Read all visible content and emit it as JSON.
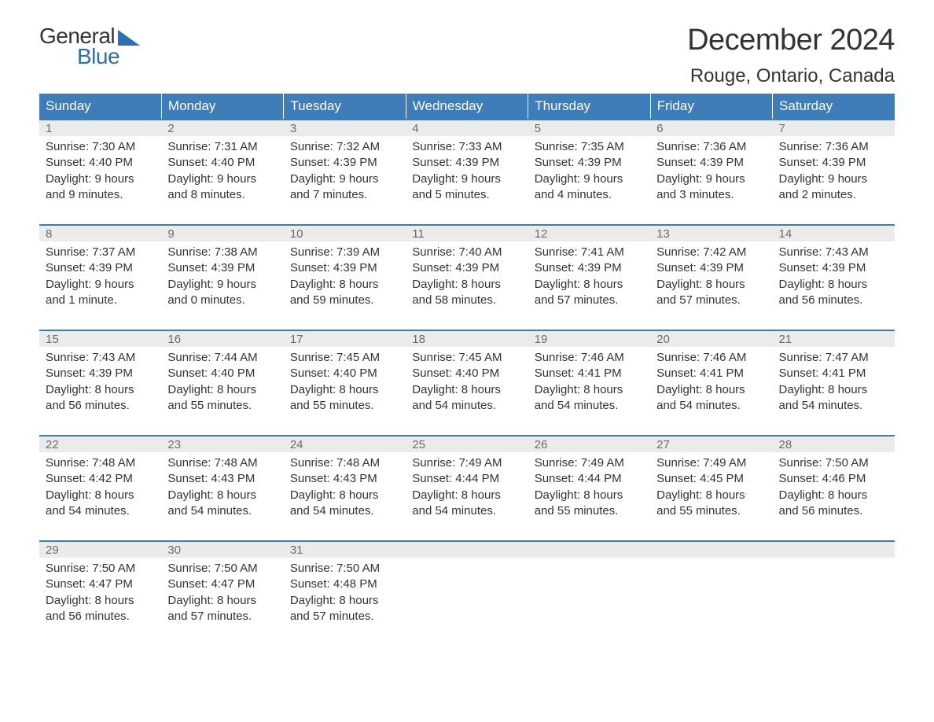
{
  "logo": {
    "general": "General",
    "blue": "Blue",
    "accent_color": "#2f6eb0"
  },
  "title": "December 2024",
  "location": "Rouge, Ontario, Canada",
  "colors": {
    "header_bg": "#3f7cba",
    "header_text": "#ffffff",
    "date_row_bg": "#ebebeb",
    "date_text": "#6b6b6b",
    "body_text": "#333333",
    "row_border": "#3f7cba",
    "background": "#ffffff"
  },
  "typography": {
    "body_fontsize": 15,
    "title_fontsize": 38,
    "location_fontsize": 24,
    "header_fontsize": 17
  },
  "day_headers": [
    "Sunday",
    "Monday",
    "Tuesday",
    "Wednesday",
    "Thursday",
    "Friday",
    "Saturday"
  ],
  "weeks": [
    [
      {
        "date": "1",
        "sunrise": "Sunrise: 7:30 AM",
        "sunset": "Sunset: 4:40 PM",
        "d1": "Daylight: 9 hours",
        "d2": "and 9 minutes."
      },
      {
        "date": "2",
        "sunrise": "Sunrise: 7:31 AM",
        "sunset": "Sunset: 4:40 PM",
        "d1": "Daylight: 9 hours",
        "d2": "and 8 minutes."
      },
      {
        "date": "3",
        "sunrise": "Sunrise: 7:32 AM",
        "sunset": "Sunset: 4:39 PM",
        "d1": "Daylight: 9 hours",
        "d2": "and 7 minutes."
      },
      {
        "date": "4",
        "sunrise": "Sunrise: 7:33 AM",
        "sunset": "Sunset: 4:39 PM",
        "d1": "Daylight: 9 hours",
        "d2": "and 5 minutes."
      },
      {
        "date": "5",
        "sunrise": "Sunrise: 7:35 AM",
        "sunset": "Sunset: 4:39 PM",
        "d1": "Daylight: 9 hours",
        "d2": "and 4 minutes."
      },
      {
        "date": "6",
        "sunrise": "Sunrise: 7:36 AM",
        "sunset": "Sunset: 4:39 PM",
        "d1": "Daylight: 9 hours",
        "d2": "and 3 minutes."
      },
      {
        "date": "7",
        "sunrise": "Sunrise: 7:36 AM",
        "sunset": "Sunset: 4:39 PM",
        "d1": "Daylight: 9 hours",
        "d2": "and 2 minutes."
      }
    ],
    [
      {
        "date": "8",
        "sunrise": "Sunrise: 7:37 AM",
        "sunset": "Sunset: 4:39 PM",
        "d1": "Daylight: 9 hours",
        "d2": "and 1 minute."
      },
      {
        "date": "9",
        "sunrise": "Sunrise: 7:38 AM",
        "sunset": "Sunset: 4:39 PM",
        "d1": "Daylight: 9 hours",
        "d2": "and 0 minutes."
      },
      {
        "date": "10",
        "sunrise": "Sunrise: 7:39 AM",
        "sunset": "Sunset: 4:39 PM",
        "d1": "Daylight: 8 hours",
        "d2": "and 59 minutes."
      },
      {
        "date": "11",
        "sunrise": "Sunrise: 7:40 AM",
        "sunset": "Sunset: 4:39 PM",
        "d1": "Daylight: 8 hours",
        "d2": "and 58 minutes."
      },
      {
        "date": "12",
        "sunrise": "Sunrise: 7:41 AM",
        "sunset": "Sunset: 4:39 PM",
        "d1": "Daylight: 8 hours",
        "d2": "and 57 minutes."
      },
      {
        "date": "13",
        "sunrise": "Sunrise: 7:42 AM",
        "sunset": "Sunset: 4:39 PM",
        "d1": "Daylight: 8 hours",
        "d2": "and 57 minutes."
      },
      {
        "date": "14",
        "sunrise": "Sunrise: 7:43 AM",
        "sunset": "Sunset: 4:39 PM",
        "d1": "Daylight: 8 hours",
        "d2": "and 56 minutes."
      }
    ],
    [
      {
        "date": "15",
        "sunrise": "Sunrise: 7:43 AM",
        "sunset": "Sunset: 4:39 PM",
        "d1": "Daylight: 8 hours",
        "d2": "and 56 minutes."
      },
      {
        "date": "16",
        "sunrise": "Sunrise: 7:44 AM",
        "sunset": "Sunset: 4:40 PM",
        "d1": "Daylight: 8 hours",
        "d2": "and 55 minutes."
      },
      {
        "date": "17",
        "sunrise": "Sunrise: 7:45 AM",
        "sunset": "Sunset: 4:40 PM",
        "d1": "Daylight: 8 hours",
        "d2": "and 55 minutes."
      },
      {
        "date": "18",
        "sunrise": "Sunrise: 7:45 AM",
        "sunset": "Sunset: 4:40 PM",
        "d1": "Daylight: 8 hours",
        "d2": "and 54 minutes."
      },
      {
        "date": "19",
        "sunrise": "Sunrise: 7:46 AM",
        "sunset": "Sunset: 4:41 PM",
        "d1": "Daylight: 8 hours",
        "d2": "and 54 minutes."
      },
      {
        "date": "20",
        "sunrise": "Sunrise: 7:46 AM",
        "sunset": "Sunset: 4:41 PM",
        "d1": "Daylight: 8 hours",
        "d2": "and 54 minutes."
      },
      {
        "date": "21",
        "sunrise": "Sunrise: 7:47 AM",
        "sunset": "Sunset: 4:41 PM",
        "d1": "Daylight: 8 hours",
        "d2": "and 54 minutes."
      }
    ],
    [
      {
        "date": "22",
        "sunrise": "Sunrise: 7:48 AM",
        "sunset": "Sunset: 4:42 PM",
        "d1": "Daylight: 8 hours",
        "d2": "and 54 minutes."
      },
      {
        "date": "23",
        "sunrise": "Sunrise: 7:48 AM",
        "sunset": "Sunset: 4:43 PM",
        "d1": "Daylight: 8 hours",
        "d2": "and 54 minutes."
      },
      {
        "date": "24",
        "sunrise": "Sunrise: 7:48 AM",
        "sunset": "Sunset: 4:43 PM",
        "d1": "Daylight: 8 hours",
        "d2": "and 54 minutes."
      },
      {
        "date": "25",
        "sunrise": "Sunrise: 7:49 AM",
        "sunset": "Sunset: 4:44 PM",
        "d1": "Daylight: 8 hours",
        "d2": "and 54 minutes."
      },
      {
        "date": "26",
        "sunrise": "Sunrise: 7:49 AM",
        "sunset": "Sunset: 4:44 PM",
        "d1": "Daylight: 8 hours",
        "d2": "and 55 minutes."
      },
      {
        "date": "27",
        "sunrise": "Sunrise: 7:49 AM",
        "sunset": "Sunset: 4:45 PM",
        "d1": "Daylight: 8 hours",
        "d2": "and 55 minutes."
      },
      {
        "date": "28",
        "sunrise": "Sunrise: 7:50 AM",
        "sunset": "Sunset: 4:46 PM",
        "d1": "Daylight: 8 hours",
        "d2": "and 56 minutes."
      }
    ],
    [
      {
        "date": "29",
        "sunrise": "Sunrise: 7:50 AM",
        "sunset": "Sunset: 4:47 PM",
        "d1": "Daylight: 8 hours",
        "d2": "and 56 minutes."
      },
      {
        "date": "30",
        "sunrise": "Sunrise: 7:50 AM",
        "sunset": "Sunset: 4:47 PM",
        "d1": "Daylight: 8 hours",
        "d2": "and 57 minutes."
      },
      {
        "date": "31",
        "sunrise": "Sunrise: 7:50 AM",
        "sunset": "Sunset: 4:48 PM",
        "d1": "Daylight: 8 hours",
        "d2": "and 57 minutes."
      },
      null,
      null,
      null,
      null
    ]
  ]
}
